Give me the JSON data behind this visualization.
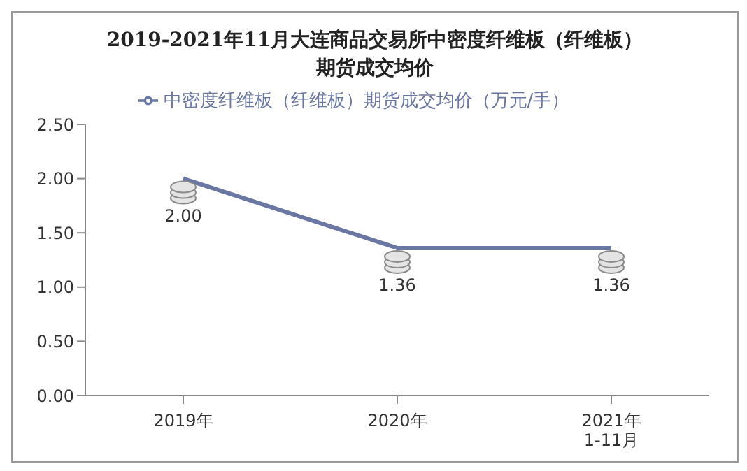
{
  "chart_data": {
    "type": "line",
    "title": "2019-2021年11月大连商品交易所中密度纤维板（纤维板）期货成交均价",
    "categories": [
      "2019年",
      "2020年",
      "2021年1-11月"
    ],
    "series": [
      {
        "name": "中密度纤维板（纤维板）期货成交均价（万元/手）",
        "color": "#6b77a3",
        "values": [
          2.0,
          1.36,
          1.36
        ],
        "value_labels": [
          "2.00",
          "1.36",
          "1.36"
        ]
      }
    ],
    "ylim": [
      0,
      2.5
    ],
    "yticks": [
      {
        "value": 0,
        "label": "0.00"
      },
      {
        "value": 0.5,
        "label": "0.50"
      },
      {
        "value": 1,
        "label": "1.00"
      },
      {
        "value": 1.5,
        "label": "1.50"
      },
      {
        "value": 2,
        "label": "2.00"
      },
      {
        "value": 2.5,
        "label": "2.50"
      }
    ],
    "grid": false,
    "legend": "top",
    "marker": "none"
  }
}
